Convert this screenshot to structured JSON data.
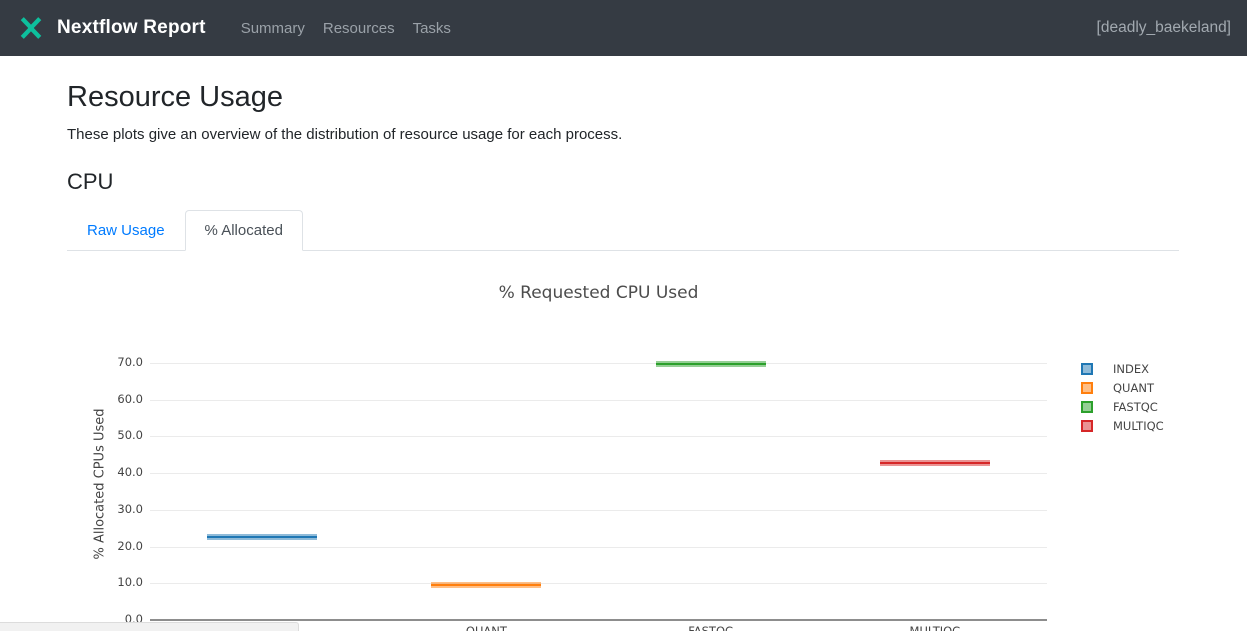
{
  "header": {
    "brand": "Nextflow Report",
    "brand_color": "#0dc09d",
    "bg_color": "#353b43",
    "nav": [
      {
        "label": "Summary"
      },
      {
        "label": "Resources"
      },
      {
        "label": "Tasks"
      }
    ],
    "run_name": "[deadly_baekeland]"
  },
  "page": {
    "title": "Resource Usage",
    "description": "These plots give an overview of the distribution of resource usage for each process.",
    "section_title": "CPU"
  },
  "tabs": {
    "items": [
      {
        "label": "Raw Usage",
        "active": false
      },
      {
        "label": "% Allocated",
        "active": true
      }
    ],
    "link_color": "#007bff"
  },
  "chart_data": {
    "type": "box",
    "title": "% Requested CPU Used",
    "ylabel": "% Allocated CPUs Used",
    "categories": [
      "INDEX",
      "QUANT",
      "FASTQC",
      "MULTIQC"
    ],
    "values": [
      22.7,
      9.6,
      69.7,
      42.8
    ],
    "colors": [
      "#1f77b4",
      "#ff7f0e",
      "#2ca02c",
      "#d62728"
    ],
    "yticks": [
      0,
      10,
      20,
      30,
      40,
      50,
      60,
      70
    ],
    "ytick_labels": [
      "0.0",
      "10.0",
      "20.0",
      "30.0",
      "40.0",
      "50.0",
      "60.0",
      "70.0"
    ],
    "ylim": [
      0,
      74
    ],
    "grid": true,
    "legend": [
      "INDEX",
      "QUANT",
      "FASTQC",
      "MULTIQC"
    ],
    "legend_position": "right"
  }
}
